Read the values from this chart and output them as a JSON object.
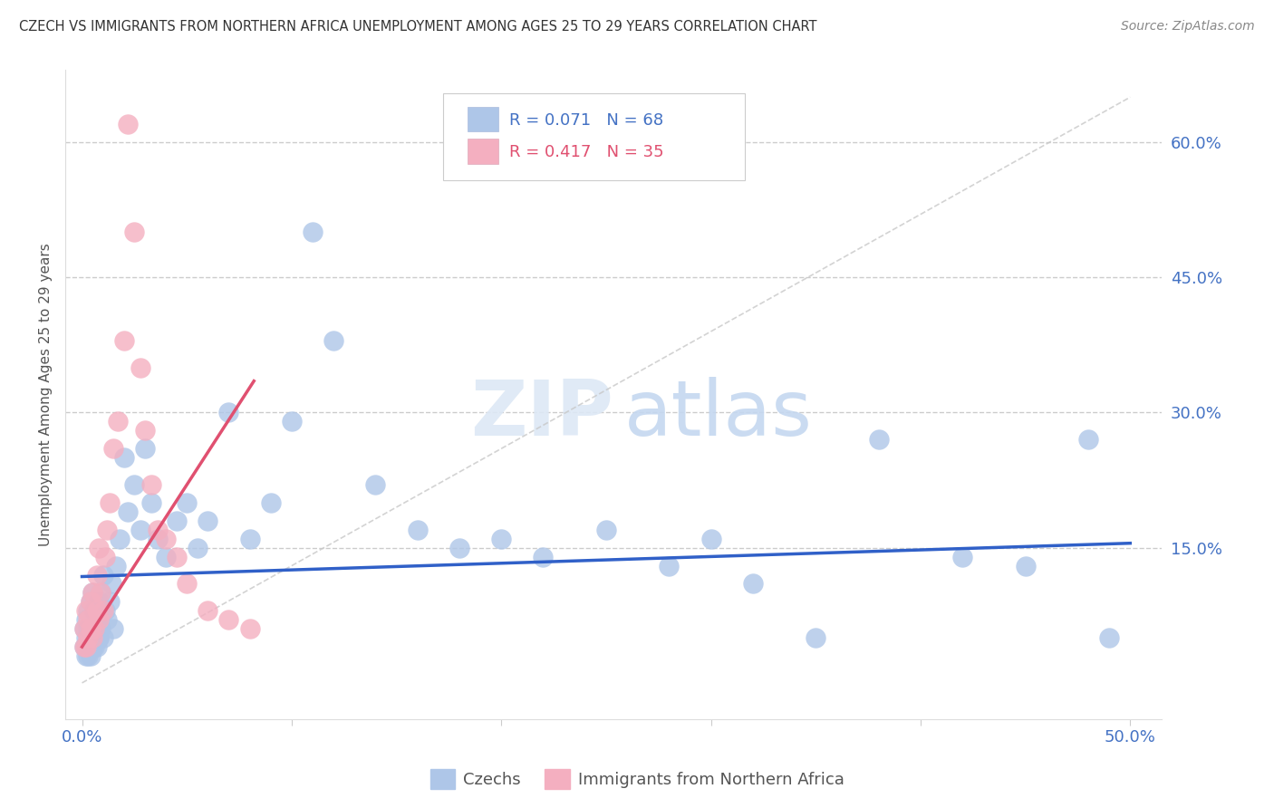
{
  "title": "CZECH VS IMMIGRANTS FROM NORTHERN AFRICA UNEMPLOYMENT AMONG AGES 25 TO 29 YEARS CORRELATION CHART",
  "source": "Source: ZipAtlas.com",
  "ylabel": "Unemployment Among Ages 25 to 29 years",
  "yticks": [
    "60.0%",
    "45.0%",
    "30.0%",
    "15.0%"
  ],
  "ytick_vals": [
    0.6,
    0.45,
    0.3,
    0.15
  ],
  "xlim": [
    0.0,
    0.5
  ],
  "ylim": [
    0.0,
    0.65
  ],
  "czech_color": "#aec6e8",
  "immigrant_color": "#f4afc0",
  "czech_line_color": "#3060c8",
  "immigrant_line_color": "#e05070",
  "czech_R": "0.071",
  "czech_N": "68",
  "immigrant_R": "0.417",
  "immigrant_N": "35",
  "legend_label_1": "Czechs",
  "legend_label_2": "Immigrants from Northern Africa",
  "czech_scatter_x": [
    0.001,
    0.001,
    0.002,
    0.002,
    0.002,
    0.003,
    0.003,
    0.003,
    0.004,
    0.004,
    0.004,
    0.005,
    0.005,
    0.005,
    0.006,
    0.006,
    0.007,
    0.007,
    0.008,
    0.008,
    0.009,
    0.009,
    0.01,
    0.01,
    0.011,
    0.012,
    0.013,
    0.014,
    0.015,
    0.016,
    0.018,
    0.02,
    0.022,
    0.025,
    0.028,
    0.03,
    0.033,
    0.036,
    0.04,
    0.045,
    0.05,
    0.055,
    0.06,
    0.07,
    0.08,
    0.09,
    0.1,
    0.11,
    0.12,
    0.14,
    0.16,
    0.18,
    0.2,
    0.22,
    0.25,
    0.28,
    0.3,
    0.32,
    0.35,
    0.38,
    0.42,
    0.45,
    0.48,
    0.49,
    0.003,
    0.004,
    0.006,
    0.008
  ],
  "czech_scatter_y": [
    0.04,
    0.06,
    0.03,
    0.05,
    0.07,
    0.04,
    0.06,
    0.08,
    0.03,
    0.05,
    0.09,
    0.04,
    0.06,
    0.1,
    0.05,
    0.08,
    0.04,
    0.07,
    0.05,
    0.09,
    0.06,
    0.1,
    0.05,
    0.12,
    0.08,
    0.07,
    0.09,
    0.11,
    0.06,
    0.13,
    0.16,
    0.25,
    0.19,
    0.22,
    0.17,
    0.26,
    0.2,
    0.16,
    0.14,
    0.18,
    0.2,
    0.15,
    0.18,
    0.3,
    0.16,
    0.2,
    0.29,
    0.5,
    0.38,
    0.22,
    0.17,
    0.15,
    0.16,
    0.14,
    0.17,
    0.13,
    0.16,
    0.11,
    0.05,
    0.27,
    0.14,
    0.13,
    0.27,
    0.05,
    0.03,
    0.04,
    0.04,
    0.05
  ],
  "immigrant_scatter_x": [
    0.001,
    0.001,
    0.002,
    0.002,
    0.003,
    0.003,
    0.004,
    0.004,
    0.005,
    0.005,
    0.006,
    0.007,
    0.007,
    0.008,
    0.008,
    0.009,
    0.01,
    0.011,
    0.012,
    0.013,
    0.015,
    0.017,
    0.02,
    0.022,
    0.025,
    0.028,
    0.03,
    0.033,
    0.036,
    0.04,
    0.045,
    0.05,
    0.06,
    0.07,
    0.08
  ],
  "immigrant_scatter_y": [
    0.04,
    0.06,
    0.04,
    0.08,
    0.05,
    0.07,
    0.06,
    0.09,
    0.05,
    0.1,
    0.06,
    0.08,
    0.12,
    0.07,
    0.15,
    0.1,
    0.08,
    0.14,
    0.17,
    0.2,
    0.26,
    0.29,
    0.38,
    0.62,
    0.5,
    0.35,
    0.28,
    0.22,
    0.17,
    0.16,
    0.14,
    0.11,
    0.08,
    0.07,
    0.06
  ],
  "czech_trend_x0": 0.0,
  "czech_trend_x1": 0.5,
  "czech_trend_y0": 0.118,
  "czech_trend_y1": 0.155,
  "immig_trend_x0": 0.0,
  "immig_trend_x1": 0.082,
  "immig_trend_y0": 0.04,
  "immig_trend_y1": 0.335
}
